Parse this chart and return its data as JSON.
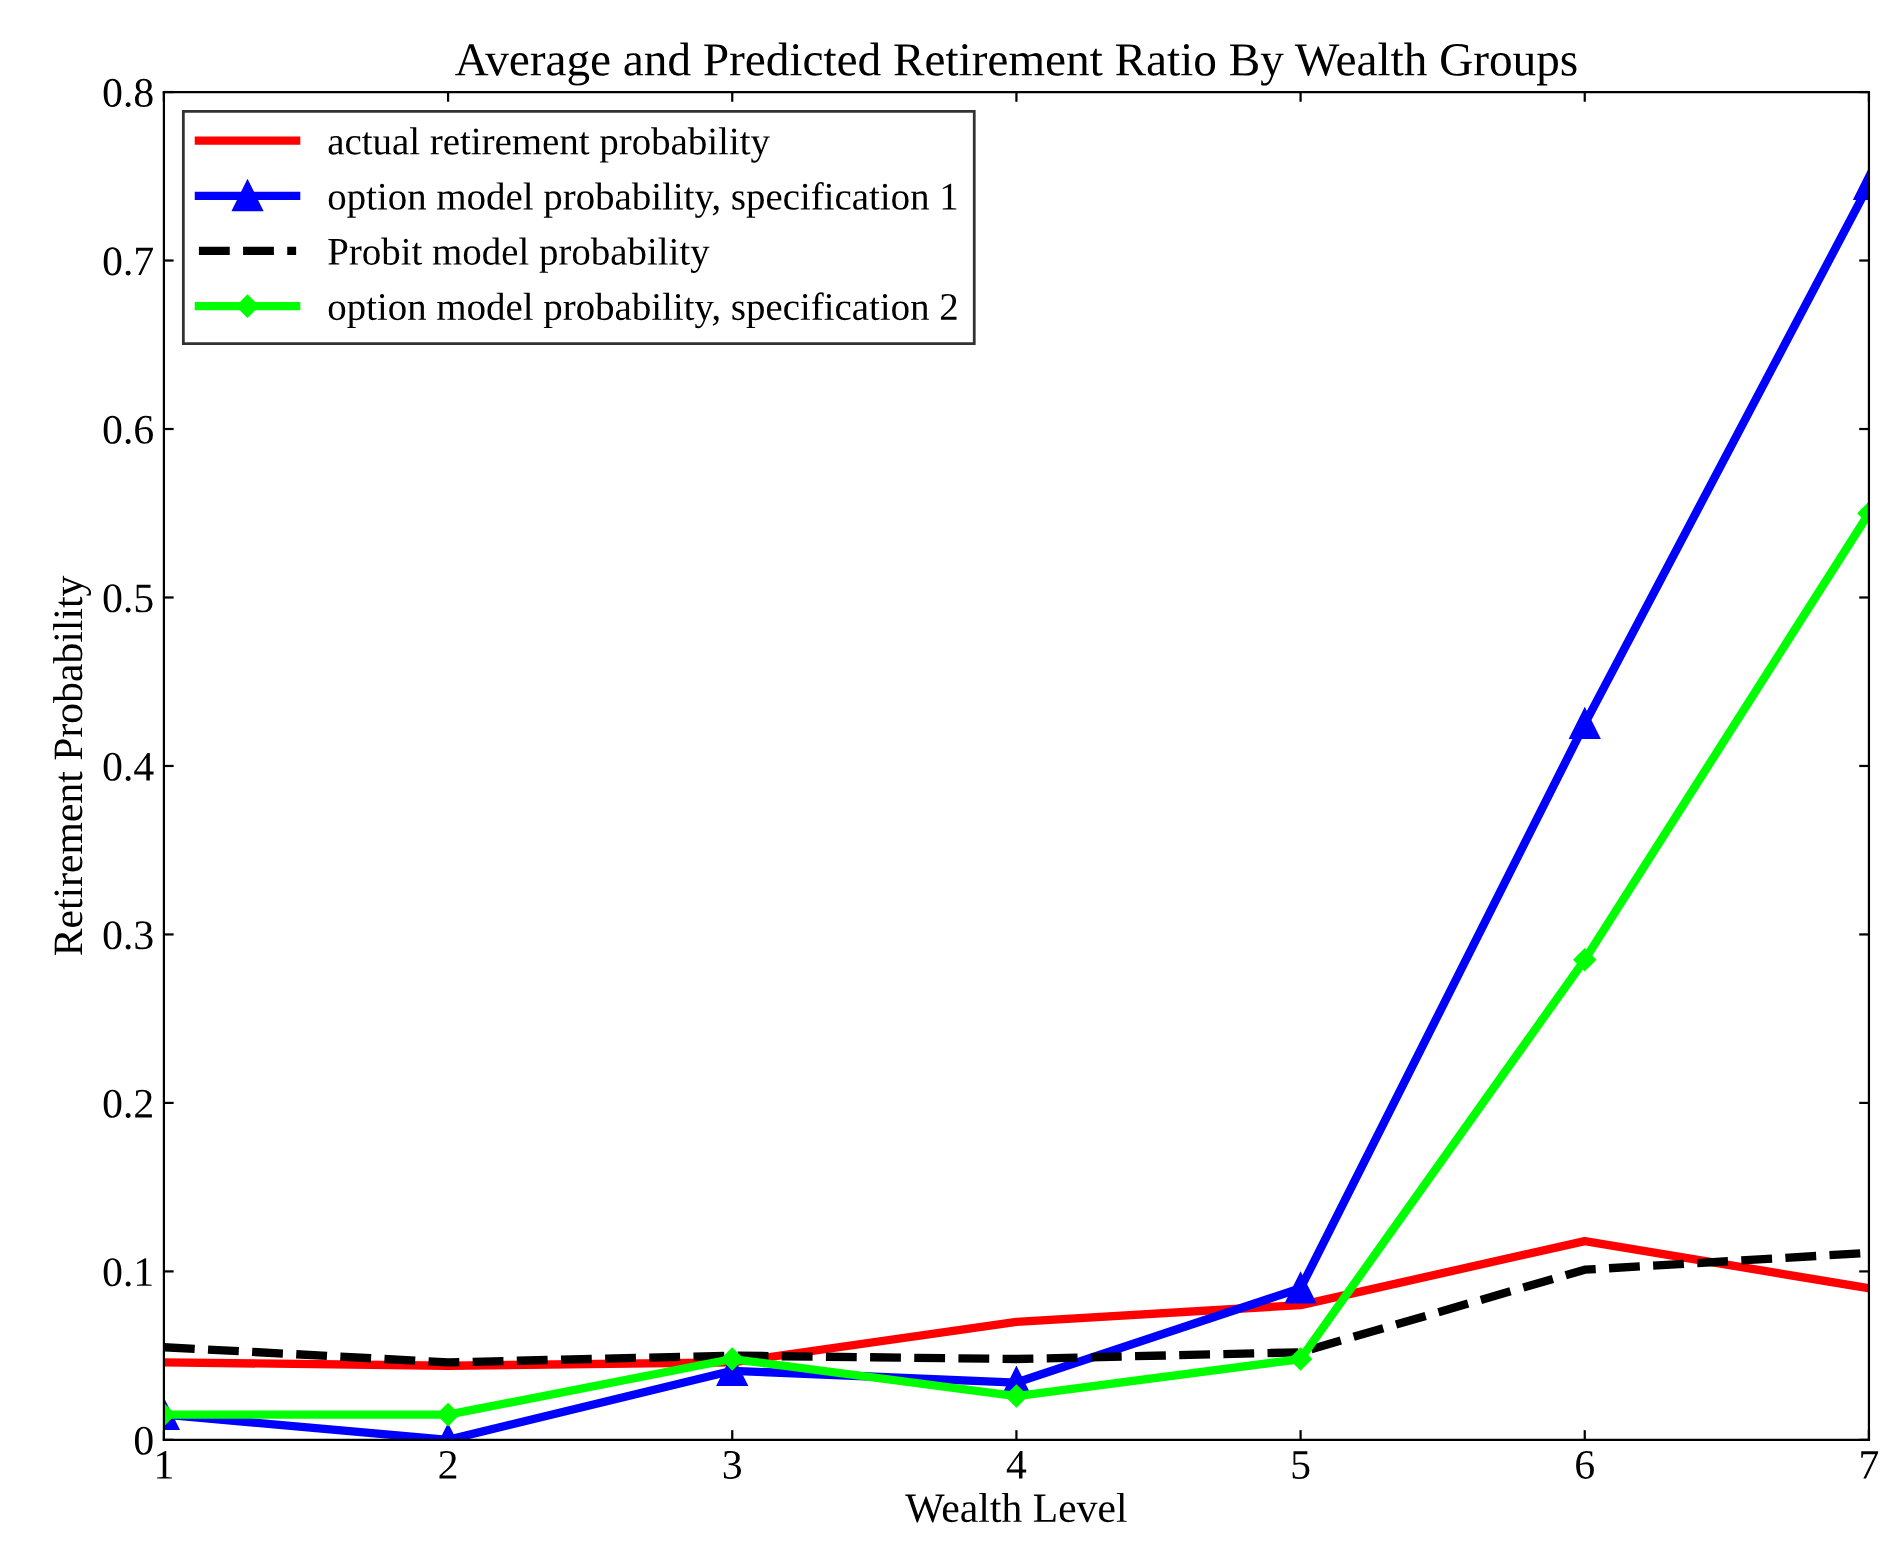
{
  "chart_data": {
    "type": "line",
    "title": "Average and Predicted Retirement Ratio By Wealth Groups",
    "xlabel": "Wealth Level",
    "ylabel": "Retirement Probability",
    "x": [
      1,
      2,
      3,
      4,
      5,
      6,
      7
    ],
    "series": [
      {
        "name": "actual retirement probability",
        "color": "#ff0000",
        "values": [
          0.046,
          0.044,
          0.046,
          0.07,
          0.08,
          0.118,
          0.09
        ],
        "marker": "none",
        "line_style": "solid"
      },
      {
        "name": "option model probability, specification 1",
        "color": "#0000ff",
        "values": [
          0.015,
          0.0,
          0.041,
          0.034,
          0.09,
          0.425,
          0.745
        ],
        "marker": "triangle",
        "line_style": "solid"
      },
      {
        "name": "Probit model probability",
        "color": "#000000",
        "values": [
          0.055,
          0.046,
          0.05,
          0.048,
          0.052,
          0.101,
          0.111
        ],
        "marker": "none",
        "line_style": "dashed"
      },
      {
        "name": "option model probability, specification 2",
        "color": "#00ff00",
        "values": [
          0.015,
          0.015,
          0.048,
          0.026,
          0.048,
          0.285,
          0.55
        ],
        "marker": "diamond",
        "line_style": "solid"
      }
    ],
    "xlim": [
      1,
      7
    ],
    "xticks": [
      1,
      2,
      3,
      4,
      5,
      6,
      7
    ],
    "ylim": [
      0,
      0.8
    ],
    "yticks": [
      0,
      0.1,
      0.2,
      0.3,
      0.4,
      0.5,
      0.6,
      0.7,
      0.8
    ],
    "grid": false,
    "legend": "top left"
  }
}
